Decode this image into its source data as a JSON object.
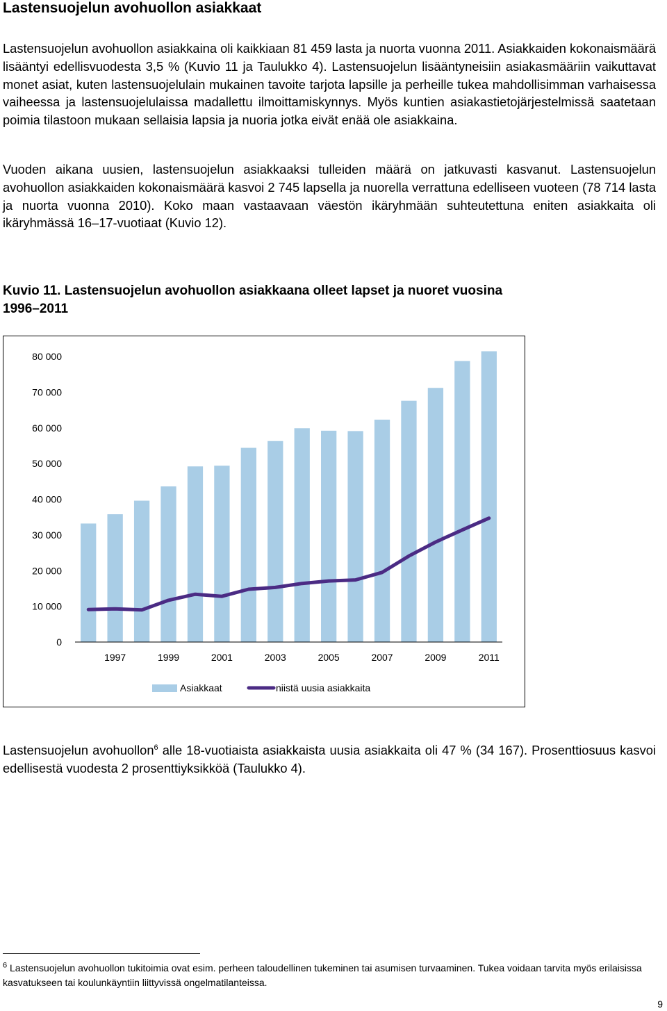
{
  "heading": "Lastensuojelun avohuollon asiakkaat",
  "paragraph1": "Lastensuojelun avohuollon asiakkaina oli kaikkiaan 81 459 lasta ja nuorta vuonna 2011. Asiakkaiden kokonaismäärä lisääntyi edellisvuodesta 3,5 % (Kuvio 11 ja Taulukko 4). Lastensuojelun lisääntyneisiin asiakasmääriin vaikuttavat monet asiat, kuten lastensuojelulain mukainen tavoite tarjota lapsille ja perheille tukea mahdollisimman varhaisessa vaiheessa ja lastensuojelulaissa madallettu ilmoittamiskynnys. Myös kuntien asiakastietojärjestelmissä saatetaan poimia tilastoon mukaan sellaisia lapsia ja nuoria jotka eivät enää ole asiakkaina.",
  "paragraph2": "Vuoden aikana uusien, lastensuojelun asiakkaaksi tulleiden määrä on jatkuvasti kasvanut. Lastensuojelun avohuollon asiakkaiden kokonaismäärä kasvoi 2 745 lapsella ja nuorella verrattuna edelliseen vuoteen (78 714 lasta ja nuorta vuonna 2010). Koko maan vastaavaan väestön ikäryhmään suhteutettuna eniten asiakkaita oli ikäryhmässä 16–17-vuotiaat (Kuvio 12).",
  "figure_caption_line1": "Kuvio 11. Lastensuojelun avohuollon asiakkaana olleet lapset ja nuoret vuosina",
  "figure_caption_line2": "1996–2011",
  "paragraph3_before": "Lastensuojelun avohuollon",
  "paragraph3_sup": "6",
  "paragraph3_after": " alle 18-vuotiaista asiakkaista uusia asiakkaita oli 47 % (34 167). Prosenttiosuus kasvoi edellisestä vuodesta 2 prosenttiyksikköä (Taulukko 4).",
  "footnote_sup": "6",
  "footnote_text": " Lastensuojelun avohuollon tukitoimia ovat esim. perheen taloudellinen tukeminen tai asumisen turvaaminen. Tukea voidaan tarvita myös erilaisissa kasvatukseen tai koulunkäyntiin liittyvissä ongelmatilanteissa.",
  "page_number": "9",
  "chart_data": {
    "type": "bar",
    "x": [
      1996,
      1997,
      1998,
      1999,
      2000,
      2001,
      2002,
      2003,
      2004,
      2005,
      2006,
      2007,
      2008,
      2009,
      2010,
      2011
    ],
    "x_tick_labels": [
      "1997",
      "1999",
      "2001",
      "2003",
      "2005",
      "2007",
      "2009",
      "2011"
    ],
    "y_tick_labels": [
      "0",
      "10 000",
      "20 000",
      "30 000",
      "40 000",
      "50 000",
      "60 000",
      "70 000",
      "80 000"
    ],
    "ylim": [
      0,
      80000
    ],
    "grid": false,
    "legend_position": "bottom",
    "series": [
      {
        "name": "Asiakkaat",
        "type": "bar",
        "color": "#a9cde6",
        "values": [
          33200,
          35800,
          39600,
          43600,
          49200,
          49400,
          54400,
          56300,
          59900,
          59200,
          59100,
          62300,
          67600,
          71200,
          78714,
          81459
        ]
      },
      {
        "name": "niistä uusia asiakkaita",
        "type": "line",
        "color": "#4b2b84",
        "values": [
          9100,
          9300,
          9000,
          11700,
          13400,
          12800,
          14800,
          15300,
          16400,
          17100,
          17400,
          19500,
          24100,
          28000,
          31400,
          34700
        ]
      }
    ]
  }
}
